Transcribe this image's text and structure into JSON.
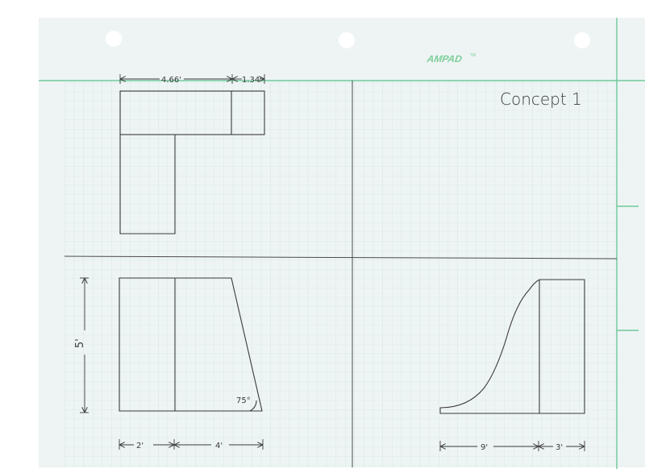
{
  "page": {
    "brand": "AMPAD",
    "brand_mark": "TM",
    "title": "Concept 1"
  },
  "colors": {
    "paper": "#eef4f4",
    "grid": "#c5e2d3",
    "margin_green": "#6ec99a",
    "pencil": "#3a3a3a",
    "brand": "#7ccf9a",
    "hole": "#ffffff"
  },
  "views": {
    "top": {
      "dim_left": "4.66'",
      "dim_right": "1.34'"
    },
    "front": {
      "height_dim": "5'",
      "angle_label": "75°",
      "dim_left": "2'",
      "dim_right": "4'"
    },
    "side": {
      "dim_left": "9'",
      "dim_right": "3'"
    }
  }
}
